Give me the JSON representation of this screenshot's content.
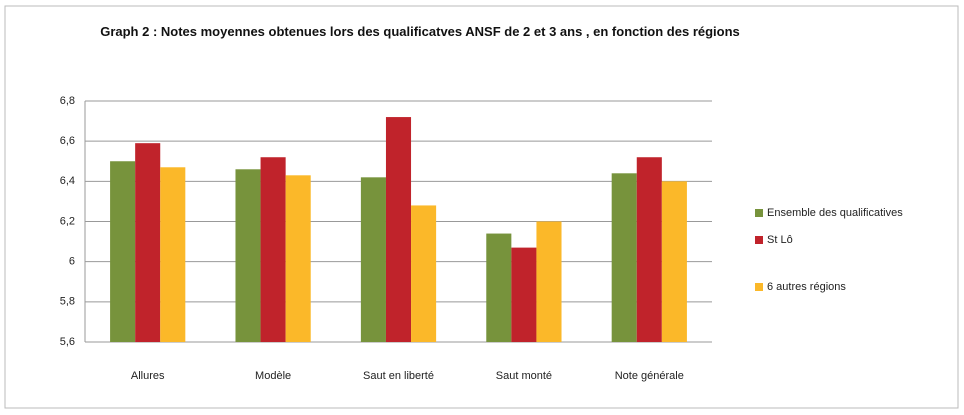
{
  "chart_data": {
    "type": "bar",
    "title": "Graph 2 : Notes moyennes obtenues lors des qualificatves ANSF de 2 et 3 ans , en fonction des régions",
    "categories": [
      "Allures",
      "Modèle",
      "Saut en liberté",
      "Saut monté",
      "Note générale"
    ],
    "series": [
      {
        "name": "Ensemble des qualificatives",
        "color": "#77933c",
        "values": [
          6.5,
          6.46,
          6.42,
          6.14,
          6.44
        ]
      },
      {
        "name": "St Lô",
        "color": "#c0232b",
        "values": [
          6.59,
          6.52,
          6.72,
          6.07,
          6.52
        ]
      },
      {
        "name": "6 autres régions",
        "color": "#fbb829",
        "values": [
          6.47,
          6.43,
          6.28,
          6.2,
          6.4
        ]
      }
    ],
    "ylim": [
      5.6,
      6.8
    ],
    "yticks": [
      {
        "value": 5.6,
        "label": "5,6"
      },
      {
        "value": 5.8,
        "label": "5,8"
      },
      6,
      {
        "value": 6.2,
        "label": "6,2"
      },
      {
        "value": 6.4,
        "label": "6,4"
      },
      {
        "value": 6.6,
        "label": "6,6"
      },
      {
        "value": 6.8,
        "label": "6,8"
      }
    ],
    "grid": true,
    "legend": "right"
  }
}
